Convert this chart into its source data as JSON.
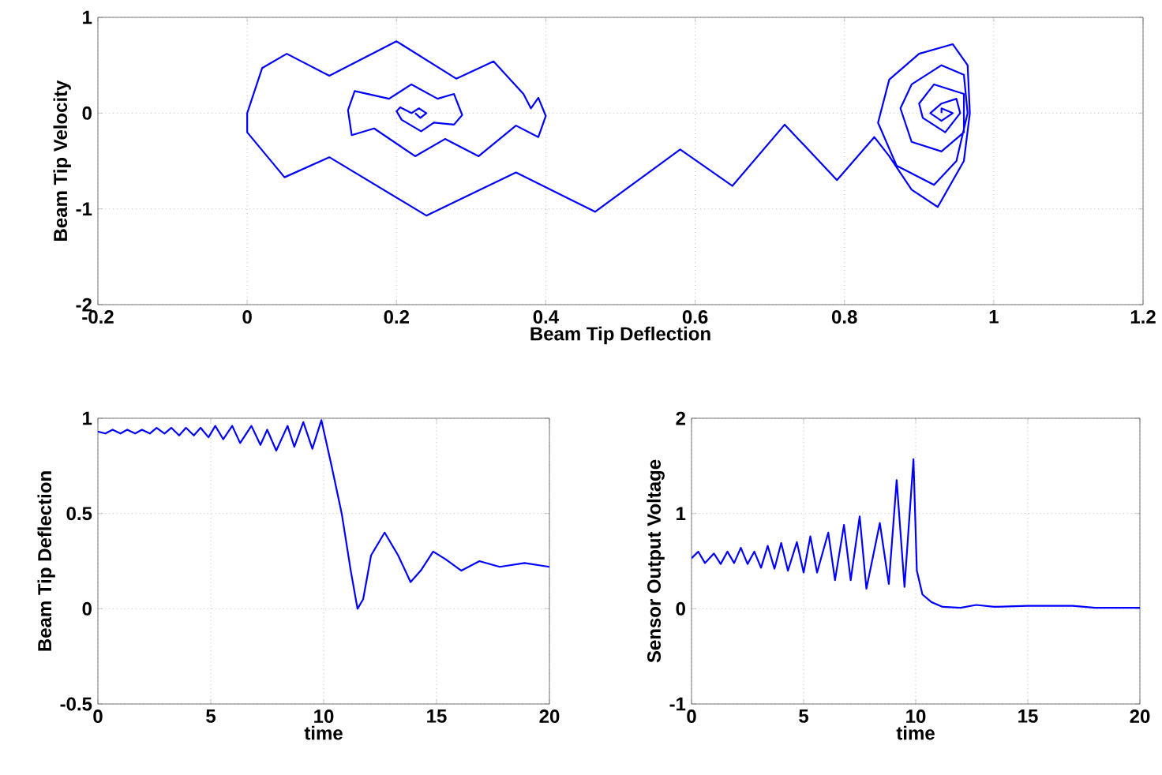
{
  "chart_data": [
    {
      "type": "line",
      "xlabel": "Beam Tip Deflection",
      "ylabel": "Beam Tip Velocity",
      "xlim": [
        -0.2,
        1.2
      ],
      "ylim": [
        -2,
        1
      ],
      "xticks": [
        -0.2,
        0,
        0.2,
        0.4,
        0.6,
        0.8,
        1,
        1.2
      ],
      "yticks": [
        -2,
        -1,
        0,
        1
      ],
      "grid": true,
      "color": "#0000ff",
      "x": [
        0.93,
        0.93,
        0.945,
        0.93,
        0.915,
        0.93,
        0.95,
        0.955,
        0.935,
        0.905,
        0.9,
        0.92,
        0.96,
        0.96,
        0.93,
        0.89,
        0.875,
        0.89,
        0.93,
        0.96,
        0.965,
        0.95,
        0.92,
        0.87,
        0.845,
        0.86,
        0.9,
        0.945,
        0.965,
        0.968,
        0.96,
        0.925,
        0.89,
        0.86,
        0.84,
        0.79,
        0.72,
        0.65,
        0.58,
        0.466,
        0.36,
        0.24,
        0.11,
        0.05,
        0.0,
        0.0,
        0.02,
        0.053,
        0.11,
        0.2,
        0.28,
        0.33,
        0.37,
        0.38,
        0.39,
        0.4,
        0.39,
        0.36,
        0.31,
        0.265,
        0.225,
        0.17,
        0.14,
        0.135,
        0.144,
        0.19,
        0.22,
        0.255,
        0.277,
        0.288,
        0.277,
        0.25,
        0.233,
        0.207,
        0.2,
        0.205,
        0.22,
        0.23,
        0.24,
        0.232,
        0.225
      ],
      "values": [
        0.0,
        0.05,
        0.0,
        -0.08,
        0.0,
        0.1,
        0.15,
        0.0,
        -0.2,
        -0.05,
        0.1,
        0.3,
        0.2,
        -0.2,
        -0.4,
        -0.3,
        0.05,
        0.3,
        0.5,
        0.4,
        0.0,
        -0.5,
        -0.75,
        -0.55,
        -0.1,
        0.35,
        0.62,
        0.72,
        0.5,
        0.0,
        -0.5,
        -0.98,
        -0.8,
        -0.45,
        -0.25,
        -0.7,
        -0.12,
        -0.76,
        -0.38,
        -1.03,
        -0.62,
        -1.07,
        -0.46,
        -0.67,
        -0.2,
        0.0,
        0.47,
        0.62,
        0.39,
        0.75,
        0.36,
        0.54,
        0.2,
        0.05,
        0.16,
        -0.03,
        -0.25,
        -0.13,
        -0.45,
        -0.27,
        -0.45,
        -0.16,
        -0.23,
        0.03,
        0.23,
        0.15,
        0.3,
        0.15,
        0.2,
        -0.02,
        -0.12,
        -0.1,
        -0.19,
        -0.07,
        0.02,
        0.06,
        0.0,
        0.05,
        0.0,
        -0.05,
        0.0
      ]
    },
    {
      "type": "line",
      "xlabel": "time",
      "ylabel": "Beam Tip Deflection",
      "xlim": [
        0,
        20
      ],
      "ylim": [
        -0.5,
        1
      ],
      "xticks": [
        0,
        5,
        10,
        15,
        20
      ],
      "yticks": [
        -0.5,
        0,
        0.5,
        1
      ],
      "grid": true,
      "color": "#0000ff",
      "x": [
        0,
        0.33,
        0.65,
        1.0,
        1.3,
        1.65,
        1.95,
        2.3,
        2.6,
        2.95,
        3.25,
        3.6,
        3.9,
        4.25,
        4.55,
        4.9,
        5.2,
        5.55,
        5.95,
        6.3,
        6.8,
        7.2,
        7.5,
        7.9,
        8.4,
        8.7,
        9.1,
        9.5,
        9.9,
        10.35,
        10.8,
        11.2,
        11.5,
        11.75,
        12.1,
        12.7,
        13.3,
        13.85,
        14.3,
        14.85,
        15.4,
        16.1,
        16.9,
        17.8,
        18.9,
        20
      ],
      "values": [
        0.93,
        0.92,
        0.94,
        0.92,
        0.94,
        0.92,
        0.94,
        0.92,
        0.95,
        0.92,
        0.95,
        0.91,
        0.95,
        0.91,
        0.95,
        0.9,
        0.96,
        0.89,
        0.96,
        0.87,
        0.96,
        0.86,
        0.94,
        0.83,
        0.96,
        0.85,
        0.98,
        0.84,
        0.99,
        0.75,
        0.5,
        0.2,
        0.0,
        0.05,
        0.28,
        0.4,
        0.28,
        0.14,
        0.2,
        0.3,
        0.26,
        0.2,
        0.25,
        0.22,
        0.24,
        0.22
      ]
    },
    {
      "type": "line",
      "xlabel": "time",
      "ylabel": "Sensor Output Voltage",
      "xlim": [
        0,
        20
      ],
      "ylim": [
        -1,
        2
      ],
      "xticks": [
        0,
        5,
        10,
        15,
        20
      ],
      "yticks": [
        -1,
        0,
        1,
        2
      ],
      "grid": true,
      "color": "#0000ff",
      "x": [
        0,
        0.3,
        0.6,
        1.0,
        1.3,
        1.6,
        1.9,
        2.2,
        2.5,
        2.8,
        3.1,
        3.4,
        3.7,
        4.0,
        4.3,
        4.7,
        5.0,
        5.3,
        5.6,
        6.1,
        6.4,
        6.8,
        7.1,
        7.5,
        7.8,
        8.4,
        8.8,
        9.15,
        9.5,
        9.9,
        10.05,
        10.3,
        10.7,
        11.2,
        12,
        12.7,
        13.5,
        15,
        17,
        18,
        20
      ],
      "values": [
        0.53,
        0.6,
        0.48,
        0.58,
        0.47,
        0.6,
        0.48,
        0.64,
        0.47,
        0.6,
        0.43,
        0.66,
        0.42,
        0.69,
        0.4,
        0.7,
        0.38,
        0.76,
        0.38,
        0.8,
        0.3,
        0.88,
        0.3,
        0.97,
        0.21,
        0.9,
        0.26,
        1.35,
        0.23,
        1.57,
        0.4,
        0.15,
        0.07,
        0.02,
        0.01,
        0.04,
        0.02,
        0.03,
        0.03,
        0.01,
        0.01
      ]
    }
  ]
}
